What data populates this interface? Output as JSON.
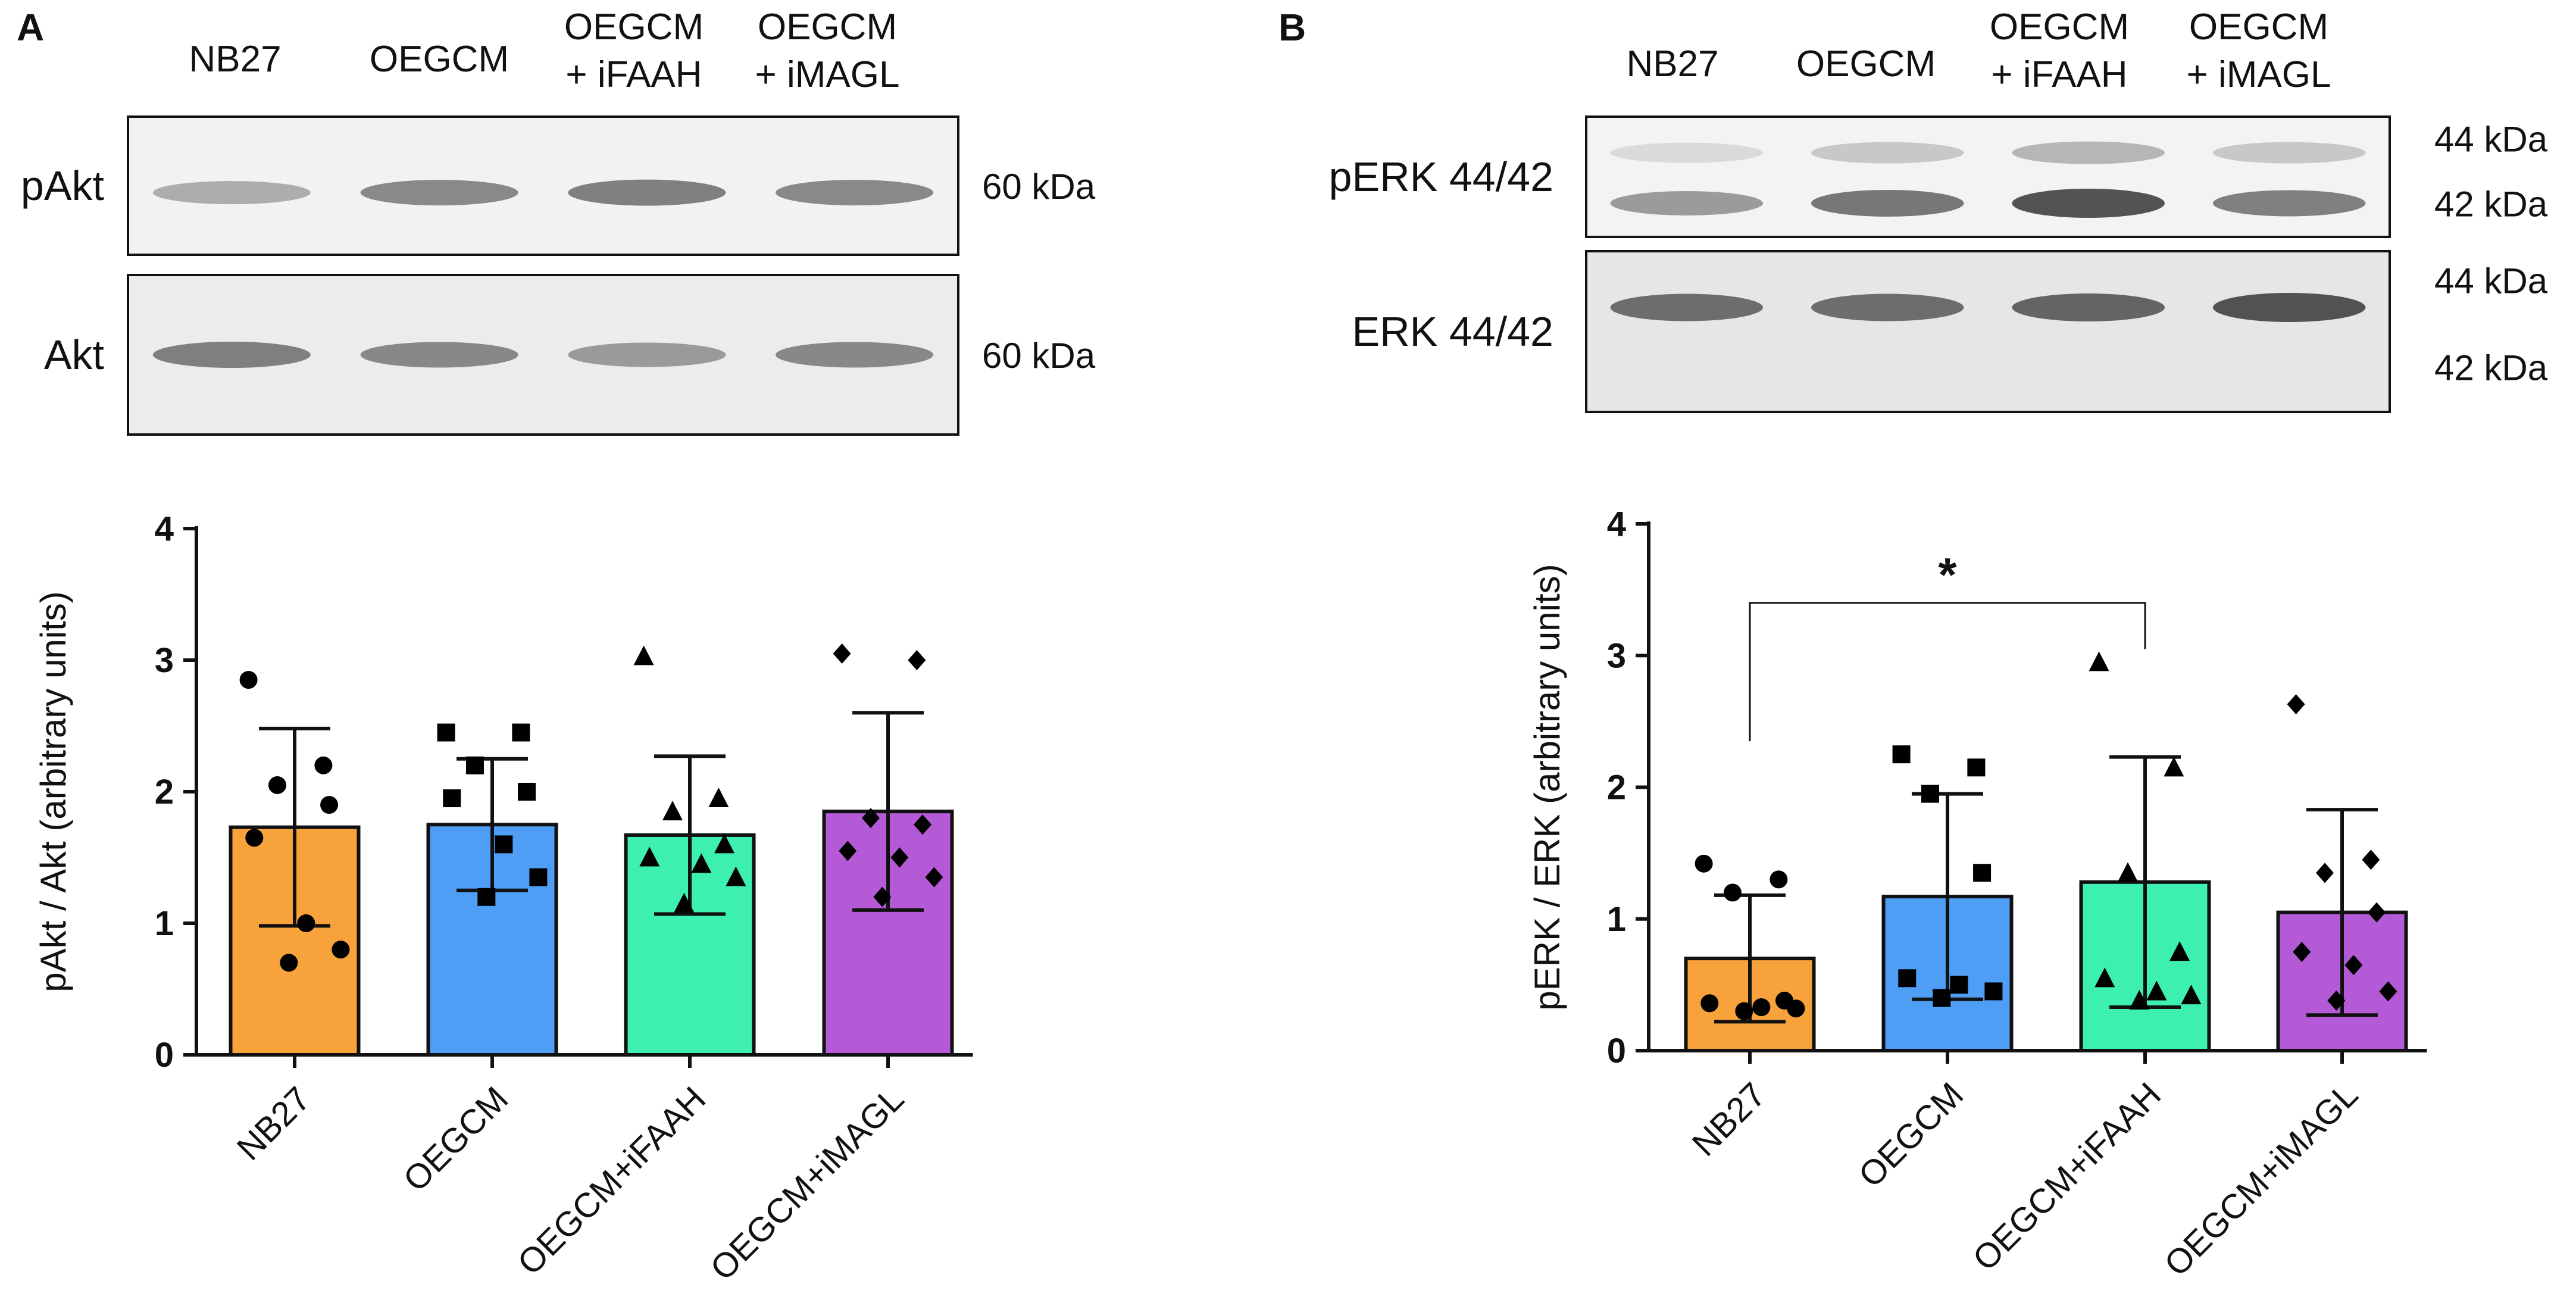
{
  "panels": [
    {
      "letter": "A",
      "blot": {
        "lane_labels": [
          [
            "NB27"
          ],
          [
            "OEGCM"
          ],
          [
            "OEGCM",
            "+ iFAAH"
          ],
          [
            "OEGCM",
            "+ iMAGL"
          ]
        ],
        "strips": [
          {
            "label": "pAkt",
            "markers": [
              "60 kDa"
            ],
            "background": "#f2f2f2",
            "bands": [
              {
                "row": 0.55,
                "intensity": [
                  0.35,
                  0.55,
                  0.6,
                  0.55
                ]
              }
            ]
          },
          {
            "label": "Akt",
            "markers": [
              "60 kDa"
            ],
            "background": "#ececec",
            "bands": [
              {
                "row": 0.5,
                "intensity": [
                  0.6,
                  0.55,
                  0.45,
                  0.55
                ]
              }
            ]
          }
        ]
      }
    },
    {
      "letter": "B",
      "blot": {
        "lane_labels": [
          [
            "NB27"
          ],
          [
            "OEGCM"
          ],
          [
            "OEGCM",
            "+ iFAAH"
          ],
          [
            "OEGCM",
            "+ iMAGL"
          ]
        ],
        "strips": [
          {
            "label": "pERK 44/42",
            "markers": [
              "44 kDa",
              "42 kDa"
            ],
            "background": "#f3f3f3",
            "bands": [
              {
                "row": 0.3,
                "intensity": [
                  0.1,
                  0.2,
                  0.3,
                  0.2
                ]
              },
              {
                "row": 0.72,
                "intensity": [
                  0.45,
                  0.65,
                  0.85,
                  0.6
                ]
              }
            ]
          },
          {
            "label": "ERK 44/42",
            "markers": [
              "44 kDa",
              "42 kDa"
            ],
            "background": "#e6e6e6",
            "bands": [
              {
                "row": 0.35,
                "intensity": [
                  0.7,
                  0.7,
                  0.75,
                  0.85
                ]
              }
            ]
          }
        ]
      }
    }
  ],
  "colors": {
    "NB27": "#f7a23b",
    "OEGCM": "#4f9ef5",
    "OEGCM+iFAAH": "#3ef0b0",
    "OEGCM+iMAGL": "#b55ad6"
  },
  "chart_data": [
    {
      "type": "bar",
      "categories": [
        "NB27",
        "OEGCM",
        "OEGCM+iFAAH",
        "OEGCM+iMAGL"
      ],
      "values": [
        1.73,
        1.75,
        1.67,
        1.85
      ],
      "error": [
        0.75,
        0.5,
        0.6,
        0.75
      ],
      "ylabel": "pAkt / Akt (arbitrary units)",
      "ylim": [
        0,
        4
      ],
      "yticks": [
        0,
        1,
        2,
        3,
        4
      ],
      "markers": [
        "circle",
        "square",
        "triangle",
        "diamond"
      ],
      "points": [
        [
          2.85,
          2.2,
          2.05,
          1.9,
          1.65,
          1.0,
          0.8,
          0.7
        ],
        [
          2.45,
          2.45,
          2.2,
          2.0,
          1.95,
          1.6,
          1.35,
          1.2
        ],
        [
          3.03,
          1.95,
          1.85,
          1.6,
          1.5,
          1.45,
          1.35,
          1.15
        ],
        [
          3.05,
          3.0,
          1.8,
          1.75,
          1.55,
          1.5,
          1.35,
          1.2
        ]
      ],
      "grid": false,
      "legend": "none",
      "significance": []
    },
    {
      "type": "bar",
      "categories": [
        "NB27",
        "OEGCM",
        "OEGCM+iFAAH",
        "OEGCM+iMAGL"
      ],
      "values": [
        0.7,
        1.17,
        1.28,
        1.05
      ],
      "error": [
        0.48,
        0.78,
        0.95,
        0.78
      ],
      "ylabel": "pERK / ERK (arbitrary units)",
      "ylim": [
        0,
        4
      ],
      "yticks": [
        0,
        1,
        2,
        3,
        4
      ],
      "markers": [
        "circle",
        "square",
        "triangle",
        "diamond"
      ],
      "points": [
        [
          1.42,
          1.3,
          1.2,
          0.38,
          0.36,
          0.33,
          0.32,
          0.3
        ],
        [
          2.25,
          2.15,
          1.95,
          1.35,
          0.55,
          0.5,
          0.45,
          0.4
        ],
        [
          2.95,
          2.15,
          1.35,
          0.75,
          0.55,
          0.45,
          0.42,
          0.38
        ],
        [
          2.63,
          1.45,
          1.35,
          1.05,
          0.75,
          0.65,
          0.45,
          0.38
        ]
      ],
      "grid": false,
      "legend": "none",
      "significance": [
        {
          "from": 0,
          "to": 2,
          "label": "*"
        }
      ]
    }
  ]
}
